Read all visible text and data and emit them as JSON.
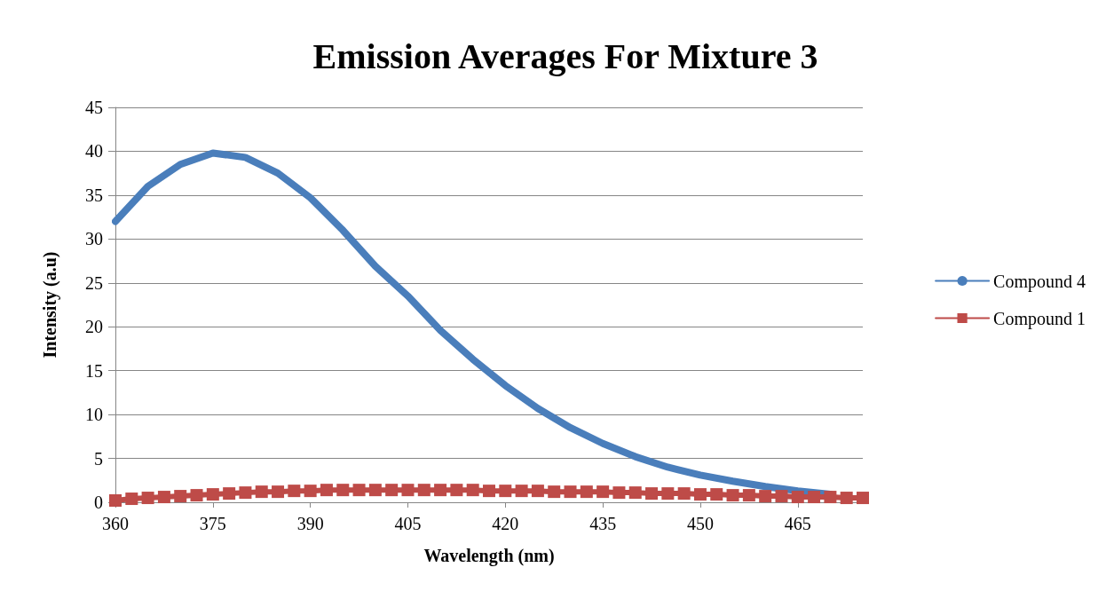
{
  "chart_data": {
    "type": "line",
    "title": "Emission Averages For Mixture 3",
    "xlabel": "Wavelength (nm)",
    "ylabel": "Intensity (a.u)",
    "xlim": [
      360,
      475
    ],
    "xticks": [
      360,
      375,
      390,
      405,
      420,
      435,
      450,
      465
    ],
    "ylim": [
      0,
      45
    ],
    "yticks": [
      0,
      5,
      10,
      15,
      20,
      25,
      30,
      35,
      40,
      45
    ],
    "grid": "y",
    "legend": "right",
    "series": [
      {
        "name": "Compound 4",
        "color": "#4a7ebb",
        "marker": "none",
        "x": [
          360,
          365,
          370,
          375,
          380,
          385,
          390,
          395,
          400,
          405,
          410,
          415,
          420,
          425,
          430,
          435,
          440,
          445,
          450,
          455,
          460,
          465,
          470
        ],
        "values": [
          32,
          36,
          38.5,
          39.8,
          39.3,
          37.5,
          34.7,
          31,
          26.9,
          23.5,
          19.6,
          16.3,
          13.3,
          10.7,
          8.5,
          6.7,
          5.2,
          4.0,
          3.1,
          2.4,
          1.8,
          1.3,
          0.9
        ]
      },
      {
        "name": "Compound 1",
        "color": "#be4b48",
        "marker": "square",
        "x": [
          360,
          362.5,
          365,
          367.5,
          370,
          372.5,
          375,
          377.5,
          380,
          382.5,
          385,
          387.5,
          390,
          392.5,
          395,
          397.5,
          400,
          402.5,
          405,
          407.5,
          410,
          412.5,
          415,
          417.5,
          420,
          422.5,
          425,
          427.5,
          430,
          432.5,
          435,
          437.5,
          440,
          442.5,
          445,
          447.5,
          450,
          452.5,
          455,
          457.5,
          460,
          462.5,
          465,
          467.5,
          470,
          472.5,
          475
        ],
        "values": [
          0.2,
          0.4,
          0.5,
          0.6,
          0.7,
          0.8,
          0.9,
          1.0,
          1.1,
          1.2,
          1.2,
          1.3,
          1.3,
          1.4,
          1.4,
          1.4,
          1.4,
          1.4,
          1.4,
          1.4,
          1.4,
          1.4,
          1.4,
          1.3,
          1.3,
          1.3,
          1.3,
          1.2,
          1.2,
          1.2,
          1.2,
          1.1,
          1.1,
          1.0,
          1.0,
          1.0,
          0.9,
          0.9,
          0.8,
          0.8,
          0.7,
          0.7,
          0.6,
          0.6,
          0.6,
          0.5,
          0.5
        ]
      }
    ]
  }
}
